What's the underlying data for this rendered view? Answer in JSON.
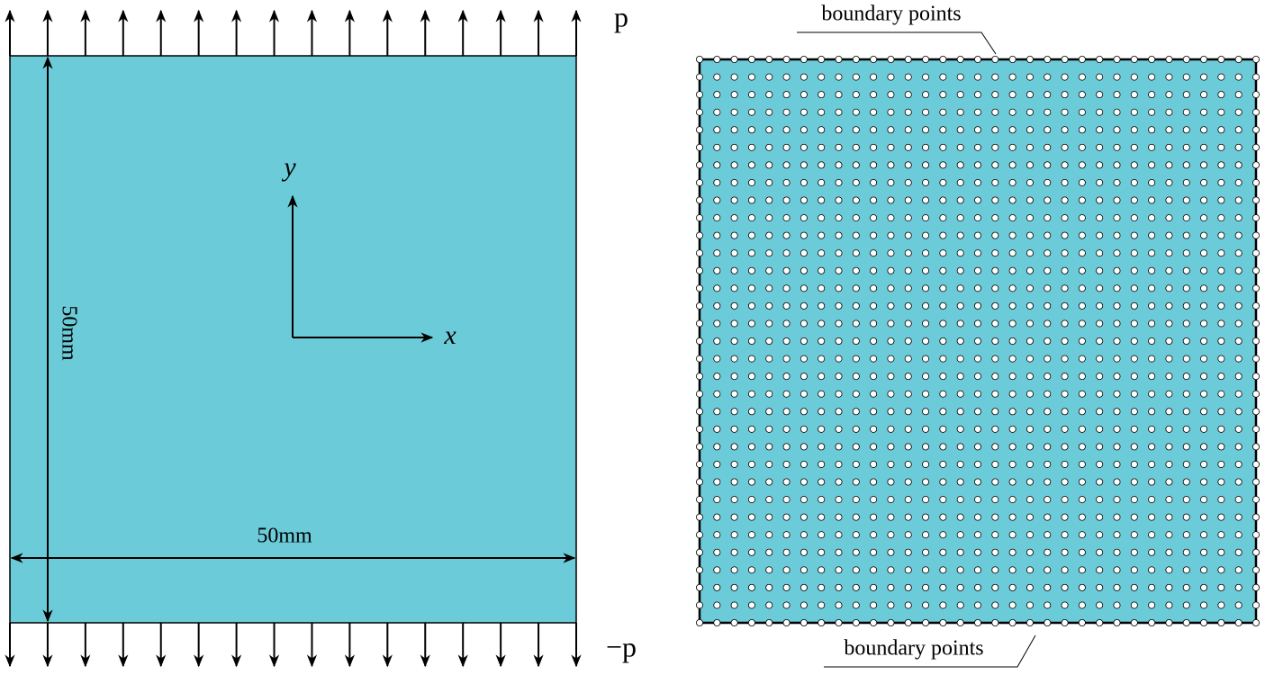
{
  "left_panel": {
    "top_load": "p",
    "bottom_load": "−p",
    "height_label": "50mm",
    "width_label": "50mm",
    "y_axis": "y",
    "x_axis": "x"
  },
  "right_panel": {
    "top_label": "boundary points",
    "bottom_label": "boundary points"
  }
}
